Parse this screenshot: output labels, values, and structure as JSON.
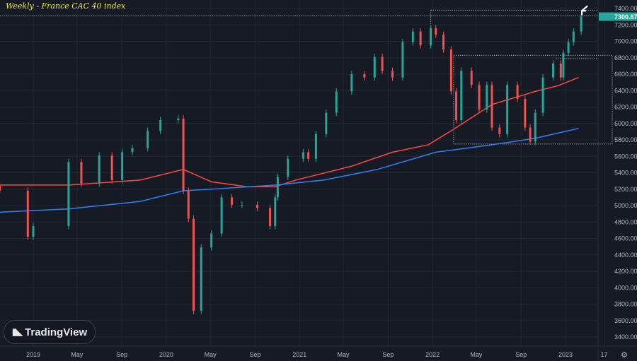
{
  "title": "Weekly - France CAC 40 index",
  "logo_text": "TradingView",
  "colors": {
    "background": "#161a25",
    "up": "#26a69a",
    "down": "#ef5350",
    "ma_red": "#f0463c",
    "ma_blue": "#2f7be6",
    "grid": "#222633",
    "last_price_bg": "#26a69a",
    "title": "#e8e53a"
  },
  "chart_data": {
    "type": "candlestick",
    "title": "Weekly - France CAC 40 index",
    "ylim": [
      3300,
      7500
    ],
    "y_ticks": [
      "7400.00",
      "7200.00",
      "7000.00",
      "6800.00",
      "6600.00",
      "6400.00",
      "6200.00",
      "6000.00",
      "5800.00",
      "5600.00",
      "5400.00",
      "5200.00",
      "5000.00",
      "4800.00",
      "4600.00",
      "4400.00",
      "4200.00",
      "4000.00",
      "3800.00",
      "3600.00",
      "3400.00"
    ],
    "x_ticks": [
      {
        "label": "2019",
        "date": "2019-01-01"
      },
      {
        "label": "May",
        "date": "2019-05-01"
      },
      {
        "label": "Sep",
        "date": "2019-09-01"
      },
      {
        "label": "2020",
        "date": "2020-01-01"
      },
      {
        "label": "May",
        "date": "2020-05-01"
      },
      {
        "label": "Sep",
        "date": "2020-09-01"
      },
      {
        "label": "2021",
        "date": "2021-01-01"
      },
      {
        "label": "May",
        "date": "2021-05-01"
      },
      {
        "label": "Sep",
        "date": "2021-09-01"
      },
      {
        "label": "2022",
        "date": "2022-01-01"
      },
      {
        "label": "May",
        "date": "2022-05-01"
      },
      {
        "label": "Sep",
        "date": "2022-09-01"
      },
      {
        "label": "2023",
        "date": "2023-01-01"
      },
      {
        "label": "17",
        "date": "2023-04-17"
      }
    ],
    "last_price": "7300.87",
    "grid": true,
    "closes": [
      [
        "2018-10-01",
        5180
      ],
      [
        "2018-12-17",
        4620
      ],
      [
        "2019-01-01",
        4750
      ],
      [
        "2019-04-08",
        5530
      ],
      [
        "2019-05-13",
        5270
      ],
      [
        "2019-07-01",
        5610
      ],
      [
        "2019-08-05",
        5310
      ],
      [
        "2019-09-02",
        5650
      ],
      [
        "2019-09-30",
        5700
      ],
      [
        "2019-11-11",
        5910
      ],
      [
        "2019-12-16",
        6040
      ],
      [
        "2020-02-03",
        6060
      ],
      [
        "2020-02-17",
        5180
      ],
      [
        "2020-03-02",
        4840
      ],
      [
        "2020-03-16",
        3720
      ],
      [
        "2020-04-06",
        4490
      ],
      [
        "2020-05-04",
        4660
      ],
      [
        "2020-06-01",
        5100
      ],
      [
        "2020-06-29",
        5010
      ],
      [
        "2020-07-27",
        5010
      ],
      [
        "2020-09-07",
        4970
      ],
      [
        "2020-10-12",
        4750
      ],
      [
        "2020-10-26",
        5100
      ],
      [
        "2020-11-02",
        5350
      ],
      [
        "2020-11-30",
        5570
      ],
      [
        "2021-01-11",
        5650
      ],
      [
        "2021-01-25",
        5570
      ],
      [
        "2021-02-15",
        5870
      ],
      [
        "2021-03-15",
        6130
      ],
      [
        "2021-04-12",
        6390
      ],
      [
        "2021-05-24",
        6600
      ],
      [
        "2021-06-28",
        6560
      ],
      [
        "2021-07-26",
        6810
      ],
      [
        "2021-08-16",
        6640
      ],
      [
        "2021-09-13",
        6560
      ],
      [
        "2021-10-11",
        6990
      ],
      [
        "2021-11-08",
        7120
      ],
      [
        "2021-11-29",
        6950
      ],
      [
        "2021-12-27",
        7160
      ],
      [
        "2022-01-10",
        7080
      ],
      [
        "2022-01-31",
        6900
      ],
      [
        "2022-02-21",
        6390
      ],
      [
        "2022-03-07",
        6040
      ],
      [
        "2022-03-21",
        6640
      ],
      [
        "2022-04-18",
        6470
      ],
      [
        "2022-05-09",
        6170
      ],
      [
        "2022-05-30",
        6470
      ],
      [
        "2022-06-13",
        5950
      ],
      [
        "2022-07-04",
        5870
      ],
      [
        "2022-07-25",
        6470
      ],
      [
        "2022-08-22",
        6300
      ],
      [
        "2022-09-12",
        5950
      ],
      [
        "2022-09-26",
        5780
      ],
      [
        "2022-10-10",
        6130
      ],
      [
        "2022-10-31",
        6560
      ],
      [
        "2022-11-28",
        6730
      ],
      [
        "2022-12-19",
        6560
      ],
      [
        "2022-12-26",
        6860
      ],
      [
        "2023-01-09",
        6990
      ],
      [
        "2023-01-23",
        7120
      ],
      [
        "2023-02-13",
        7300.87
      ]
    ],
    "series": [
      {
        "color": "#f0463c",
        "points": [
          [
            "2018-10-01",
            5250
          ],
          [
            "2019-04-08",
            5250
          ],
          [
            "2019-10-21",
            5310
          ],
          [
            "2020-02-17",
            5440
          ],
          [
            "2020-05-04",
            5290
          ],
          [
            "2020-08-10",
            5230
          ],
          [
            "2020-10-26",
            5230
          ],
          [
            "2020-12-21",
            5310
          ],
          [
            "2021-05-24",
            5480
          ],
          [
            "2021-09-13",
            5650
          ],
          [
            "2021-12-20",
            5740
          ],
          [
            "2022-02-21",
            5910
          ],
          [
            "2022-06-13",
            6230
          ],
          [
            "2022-10-10",
            6390
          ],
          [
            "2022-12-12",
            6460
          ],
          [
            "2023-02-06",
            6560
          ]
        ]
      },
      {
        "color": "#2f7be6",
        "points": [
          [
            "2018-10-01",
            4920
          ],
          [
            "2019-04-08",
            4960
          ],
          [
            "2019-10-21",
            5050
          ],
          [
            "2020-02-17",
            5180
          ],
          [
            "2020-05-04",
            5200
          ],
          [
            "2020-10-26",
            5250
          ],
          [
            "2021-03-08",
            5310
          ],
          [
            "2021-08-02",
            5440
          ],
          [
            "2022-01-10",
            5650
          ],
          [
            "2022-06-13",
            5740
          ],
          [
            "2022-10-10",
            5820
          ],
          [
            "2023-02-06",
            5940
          ]
        ]
      }
    ],
    "annotations": [
      {
        "type": "hline",
        "price": 7310,
        "from": "2018-10-01"
      },
      {
        "type": "box",
        "top": 7380,
        "from": "2021-12-27"
      },
      {
        "type": "box",
        "top": 6830,
        "bottom": 5750,
        "from": "2022-02-28"
      },
      {
        "type": "hline",
        "price": 6790,
        "from": "2022-12-05"
      },
      {
        "type": "arrow",
        "date": "2023-02-13",
        "price": 7380
      }
    ]
  }
}
